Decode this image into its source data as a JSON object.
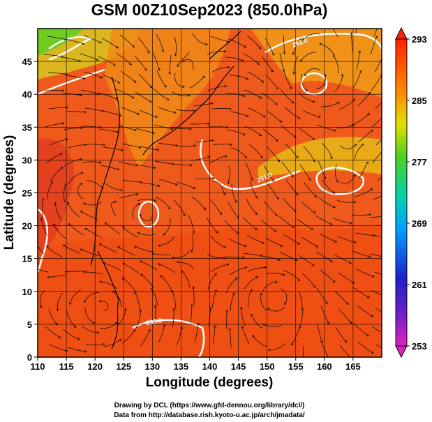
{
  "chart_data": {
    "type": "heatmap",
    "title": "GSM 00Z10Sep2023 (850.0hPa)",
    "xlabel": "Longitude (degrees)",
    "ylabel": "Latitude  (degrees)",
    "xlim": [
      110,
      170
    ],
    "ylim": [
      0,
      50
    ],
    "x_ticks": [
      110,
      115,
      120,
      125,
      130,
      135,
      140,
      145,
      150,
      155,
      160,
      165
    ],
    "y_ticks": [
      0,
      5,
      10,
      15,
      20,
      25,
      30,
      35,
      40,
      45
    ],
    "grid": true,
    "colorbar": {
      "range": [
        253,
        293
      ],
      "ticks": [
        293,
        285,
        277,
        269,
        261,
        253
      ],
      "colors": [
        "#e020c0",
        "#2020c8",
        "#00a0ff",
        "#00d0b0",
        "#50d020",
        "#e0e000",
        "#ff9000",
        "#ff2000"
      ]
    },
    "contour": {
      "level_labels": [
        "291.0",
        "291.0",
        "293.0"
      ]
    }
  },
  "credits": {
    "line1": "Drawing by DCL (https://www.gfd-dennou.org/library/dcl/)",
    "line2": "Data from http://database.rish.kyoto-u.ac.jp/arch/jmadata/"
  }
}
